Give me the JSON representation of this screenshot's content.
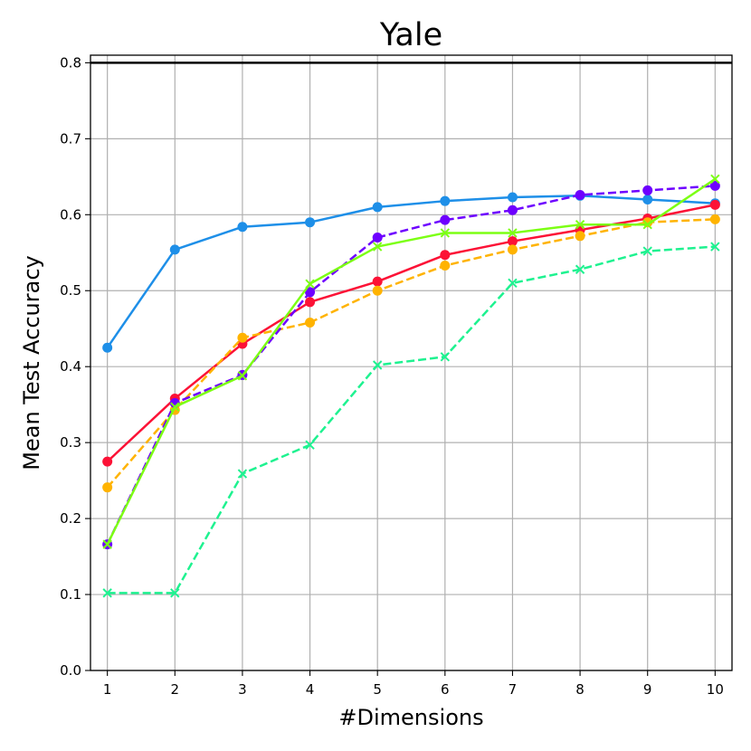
{
  "chart_data": {
    "type": "line",
    "title": "Yale",
    "xlabel": "#Dimensions",
    "ylabel": "Mean Test Accuracy",
    "x": [
      1,
      2,
      3,
      4,
      5,
      6,
      7,
      8,
      9,
      10
    ],
    "xlim": [
      0.75,
      10.25
    ],
    "ylim": [
      0.0,
      0.81
    ],
    "x_ticks": [
      "1",
      "2",
      "3",
      "4",
      "5",
      "6",
      "7",
      "8",
      "9",
      "10"
    ],
    "y_ticks": [
      "0.0",
      "0.1",
      "0.2",
      "0.3",
      "0.4",
      "0.5",
      "0.6",
      "0.7",
      "0.8"
    ],
    "y_tick_values": [
      0.0,
      0.1,
      0.2,
      0.3,
      0.4,
      0.5,
      0.6,
      0.7,
      0.8
    ],
    "grid": true,
    "reference_line": {
      "y": 0.8,
      "color": "#000000"
    },
    "series": [
      {
        "color": "#1e8fe8",
        "dash": "solid",
        "marker": "circle",
        "values": [
          0.425,
          0.554,
          0.584,
          0.59,
          0.61,
          0.618,
          0.623,
          0.625,
          0.62,
          0.615
        ]
      },
      {
        "color": "#fc1236",
        "dash": "solid",
        "marker": "circle",
        "values": [
          0.275,
          0.358,
          0.43,
          0.485,
          0.512,
          0.547,
          0.565,
          0.58,
          0.595,
          0.613
        ]
      },
      {
        "color": "#ffb300",
        "dash": "dashed",
        "marker": "circle",
        "values": [
          0.241,
          0.343,
          0.438,
          0.458,
          0.5,
          0.533,
          0.554,
          0.572,
          0.59,
          0.594
        ]
      },
      {
        "color": "#6e00ff",
        "dash": "dashed",
        "marker": "circle",
        "values": [
          0.166,
          0.352,
          0.389,
          0.498,
          0.57,
          0.593,
          0.606,
          0.626,
          0.632,
          0.638
        ]
      },
      {
        "color": "#7cff14",
        "dash": "solid",
        "marker": "x",
        "values": [
          0.166,
          0.347,
          0.388,
          0.509,
          0.558,
          0.576,
          0.576,
          0.587,
          0.587,
          0.647
        ]
      },
      {
        "color": "#1ef290",
        "dash": "dashed",
        "marker": "x",
        "values": [
          0.102,
          0.102,
          0.259,
          0.297,
          0.402,
          0.413,
          0.51,
          0.528,
          0.552,
          0.558
        ]
      }
    ]
  }
}
